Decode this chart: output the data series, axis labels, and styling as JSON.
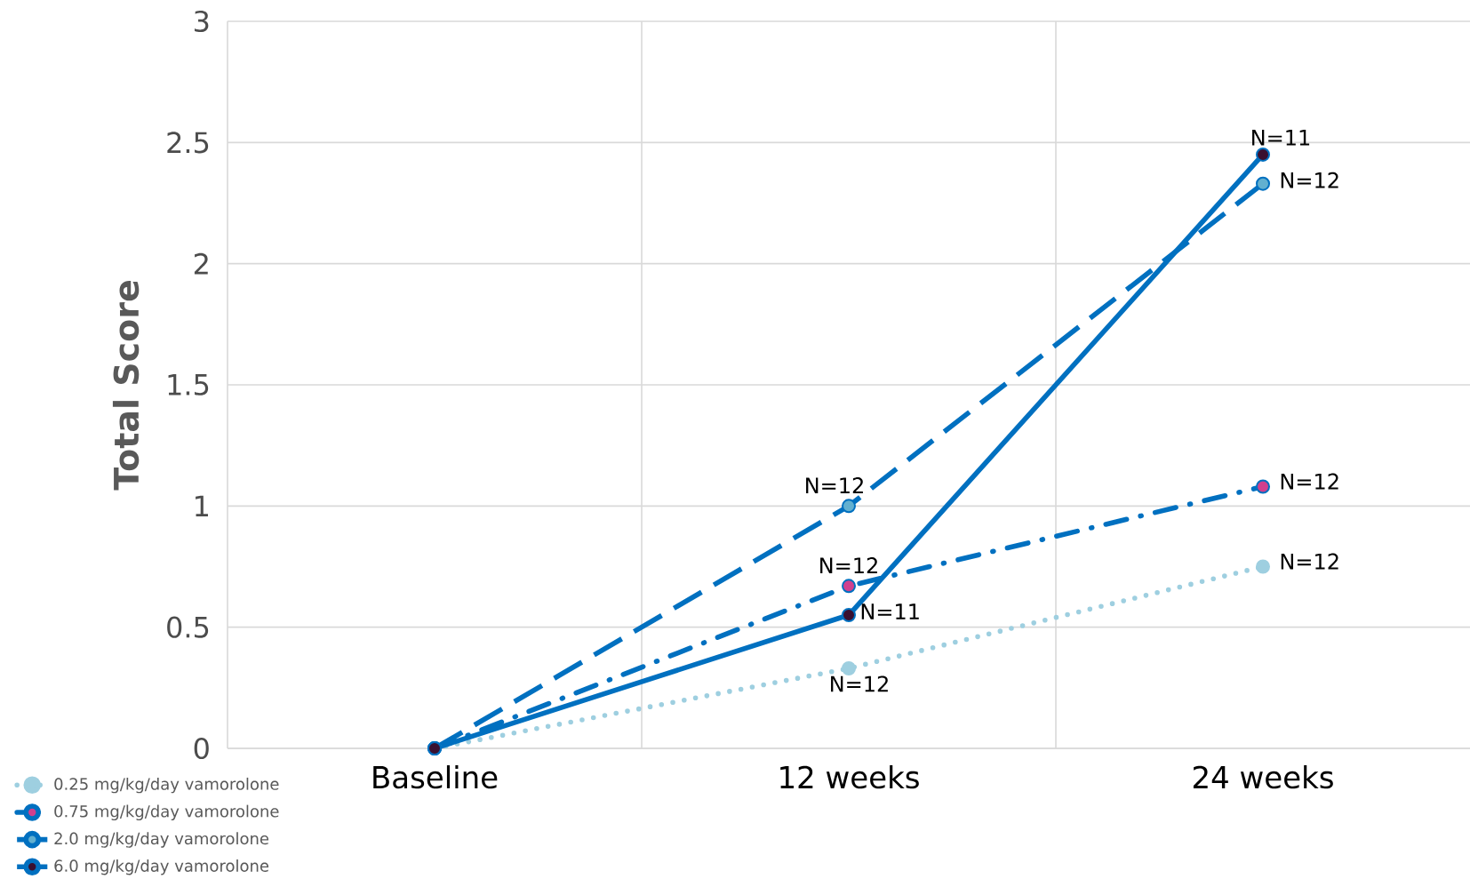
{
  "chart_data": {
    "type": "line",
    "ylabel": "Total  Score",
    "categories": [
      "Baseline",
      "12 weeks",
      "24 weeks"
    ],
    "series": [
      {
        "name": "0.25 mg/kg/day vamorolone",
        "color": "#9ecfe0",
        "line_style": "dotted",
        "colors": [
          "#9ecfe0",
          "#9ecfe0",
          "#9ecfe0"
        ],
        "values": [
          0,
          0.33,
          0.75
        ]
      },
      {
        "name": "0.75 mg/kg/day vamorolone",
        "color": "#0070c0",
        "line_style": "dashdot",
        "colors": [
          "#d0408e",
          "#d0408e",
          "#d0408e"
        ],
        "values": [
          0,
          0.67,
          1.08
        ]
      },
      {
        "name": "2.0 mg/kg/day vamorolone",
        "color": "#0070c0",
        "line_style": "dashed",
        "colors": [
          "#62b0d0",
          "#62b0d0",
          "#62b0d0"
        ],
        "values": [
          0,
          1.0,
          2.33
        ]
      },
      {
        "name": "6.0 mg/kg/day vamorolone",
        "color": "#0070c0",
        "line_style": "solid",
        "colors": [
          "#3a1030",
          "#3a1030",
          "#3a1030"
        ],
        "values": [
          0,
          0.55,
          2.45
        ]
      }
    ],
    "ylim": [
      0,
      3
    ],
    "yticks": [
      0,
      0.5,
      1,
      1.5,
      2,
      2.5,
      3
    ],
    "grid": true,
    "legend": "bottom left",
    "marker": "circle",
    "annotations": [
      {
        "text": "N=12",
        "x": "12 weeks",
        "y": 1.0
      },
      {
        "text": "N=12",
        "x": "12 weeks",
        "y": 0.67
      },
      {
        "text": "N=11",
        "x": "12 weeks",
        "y": 0.55
      },
      {
        "text": "N=12",
        "x": "12 weeks",
        "y": 0.33
      },
      {
        "text": "N=11",
        "x": "24 weeks",
        "y": 2.45
      },
      {
        "text": "N=12",
        "x": "24 weeks",
        "y": 2.33
      },
      {
        "text": "N=12",
        "x": "24 weeks",
        "y": 1.08
      },
      {
        "text": "N=12",
        "x": "24 weeks",
        "y": 0.75
      }
    ]
  }
}
